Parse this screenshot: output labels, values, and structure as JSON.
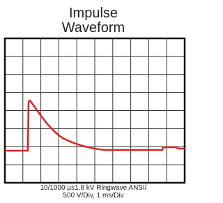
{
  "header": {
    "title_lines": [
      "Impulse",
      "Waveform"
    ]
  },
  "caption": {
    "lines": [
      "10/1000 µs1.8 kV Ringwave ANSI/",
      "500 V/Div, 1 ms/Div"
    ]
  }
}
